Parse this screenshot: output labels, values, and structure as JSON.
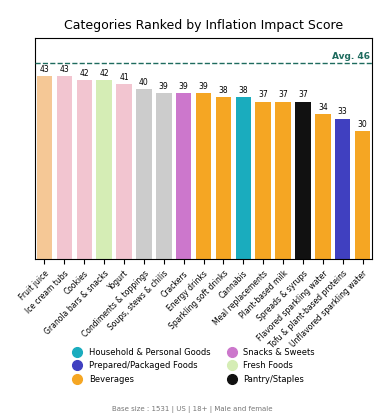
{
  "chart_data": {
    "type": "bar",
    "title": "Categories Ranked by Inflation Impact Score",
    "categories": [
      "Fruit juice",
      "Ice cream tubs",
      "Cookies",
      "Granola bars & snacks",
      "Yogurt",
      "Condiments & toppings",
      "Soups, stews & chilis",
      "Crackers",
      "Energy drinks",
      "Sparkling soft drinks",
      "Cannabis",
      "Meal replacements",
      "Plant-based milk",
      "Spreads & syrups",
      "Flavored sparkling water",
      "Tofu & plant-based proteins",
      "Unflavored sparkling water"
    ],
    "values": [
      43,
      43,
      42,
      42,
      41,
      40,
      39,
      39,
      39,
      38,
      38,
      37,
      37,
      37,
      34,
      33,
      30
    ],
    "colors": [
      "#F5C896",
      "#F2C5D0",
      "#F2C5D0",
      "#D5EDB5",
      "#F2C5D0",
      "#CCCCCC",
      "#CCCCCC",
      "#CC77CC",
      "#F5A623",
      "#F5A623",
      "#1AACBE",
      "#F5A623",
      "#F5A623",
      "#111111",
      "#F5A623",
      "#4040C0",
      "#F5A623"
    ],
    "ylim": [
      0,
      52
    ],
    "tick_labels": "x",
    "data_labels": true,
    "reference_line": {
      "value": 46,
      "label": "Avg. 46",
      "color": "#1E6B5E"
    },
    "legend": "upper center",
    "legend_entries": [
      {
        "label": "Household & Personal Goods",
        "color": "#1AACBE"
      },
      {
        "label": "Prepared/Packaged Foods",
        "color": "#4040C0"
      },
      {
        "label": "Beverages",
        "color": "#F5A623"
      },
      {
        "label": "Snacks & Sweets",
        "color": "#CC77CC"
      },
      {
        "label": "Fresh Foods",
        "color": "#D5EDB5"
      },
      {
        "label": "Pantry/Staples",
        "color": "#111111"
      }
    ],
    "footnote": "Base size : 1531 | US | 18+ | Male and female"
  }
}
